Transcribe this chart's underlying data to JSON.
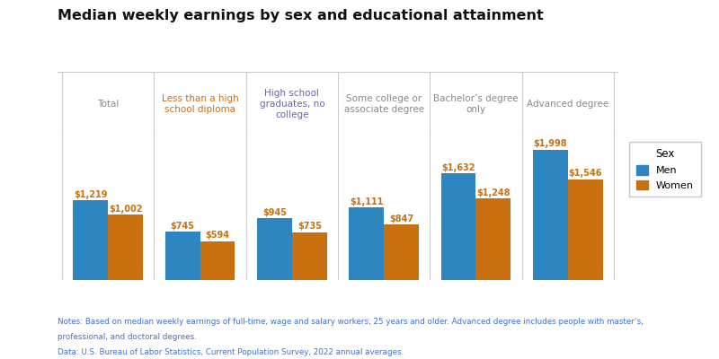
{
  "title": "Median weekly earnings by sex and educational attainment",
  "categories": [
    "Total",
    "Less than a high\nschool diploma",
    "High school\ngraduates, no\ncollege",
    "Some college or\nassociate degree",
    "Bachelor’s degree\nonly",
    "Advanced degree"
  ],
  "men_values": [
    1219,
    745,
    945,
    1111,
    1632,
    1998
  ],
  "women_values": [
    1002,
    594,
    735,
    847,
    1248,
    1546
  ],
  "men_color": "#2e86c1",
  "women_color": "#c87010",
  "bar_width": 0.38,
  "ylim": [
    0,
    2200
  ],
  "legend_title": "Sex",
  "legend_men": "Men",
  "legend_women": "Women",
  "notes_line1": "Notes: Based on median weekly earnings of full-time, wage and salary workers, 25 years and older. Advanced degree includes people with master’s,",
  "notes_line2": "professional, and doctoral degrees.",
  "data_source": "Data: U.S. Bureau of Labor Statistics, Current Population Survey, 2022 annual averages.",
  "bg_color": "#ffffff",
  "header_text_color": "#888888",
  "title_color": "#111111",
  "label_color": "#c87010",
  "grid_color": "#cccccc",
  "footer_color": "#4472c4",
  "cat0_color": "#888888",
  "cat1_color": "#c87010",
  "cat2_color": "#555599",
  "cat3_color": "#888888",
  "cat4_color": "#888888",
  "cat5_color": "#888888"
}
